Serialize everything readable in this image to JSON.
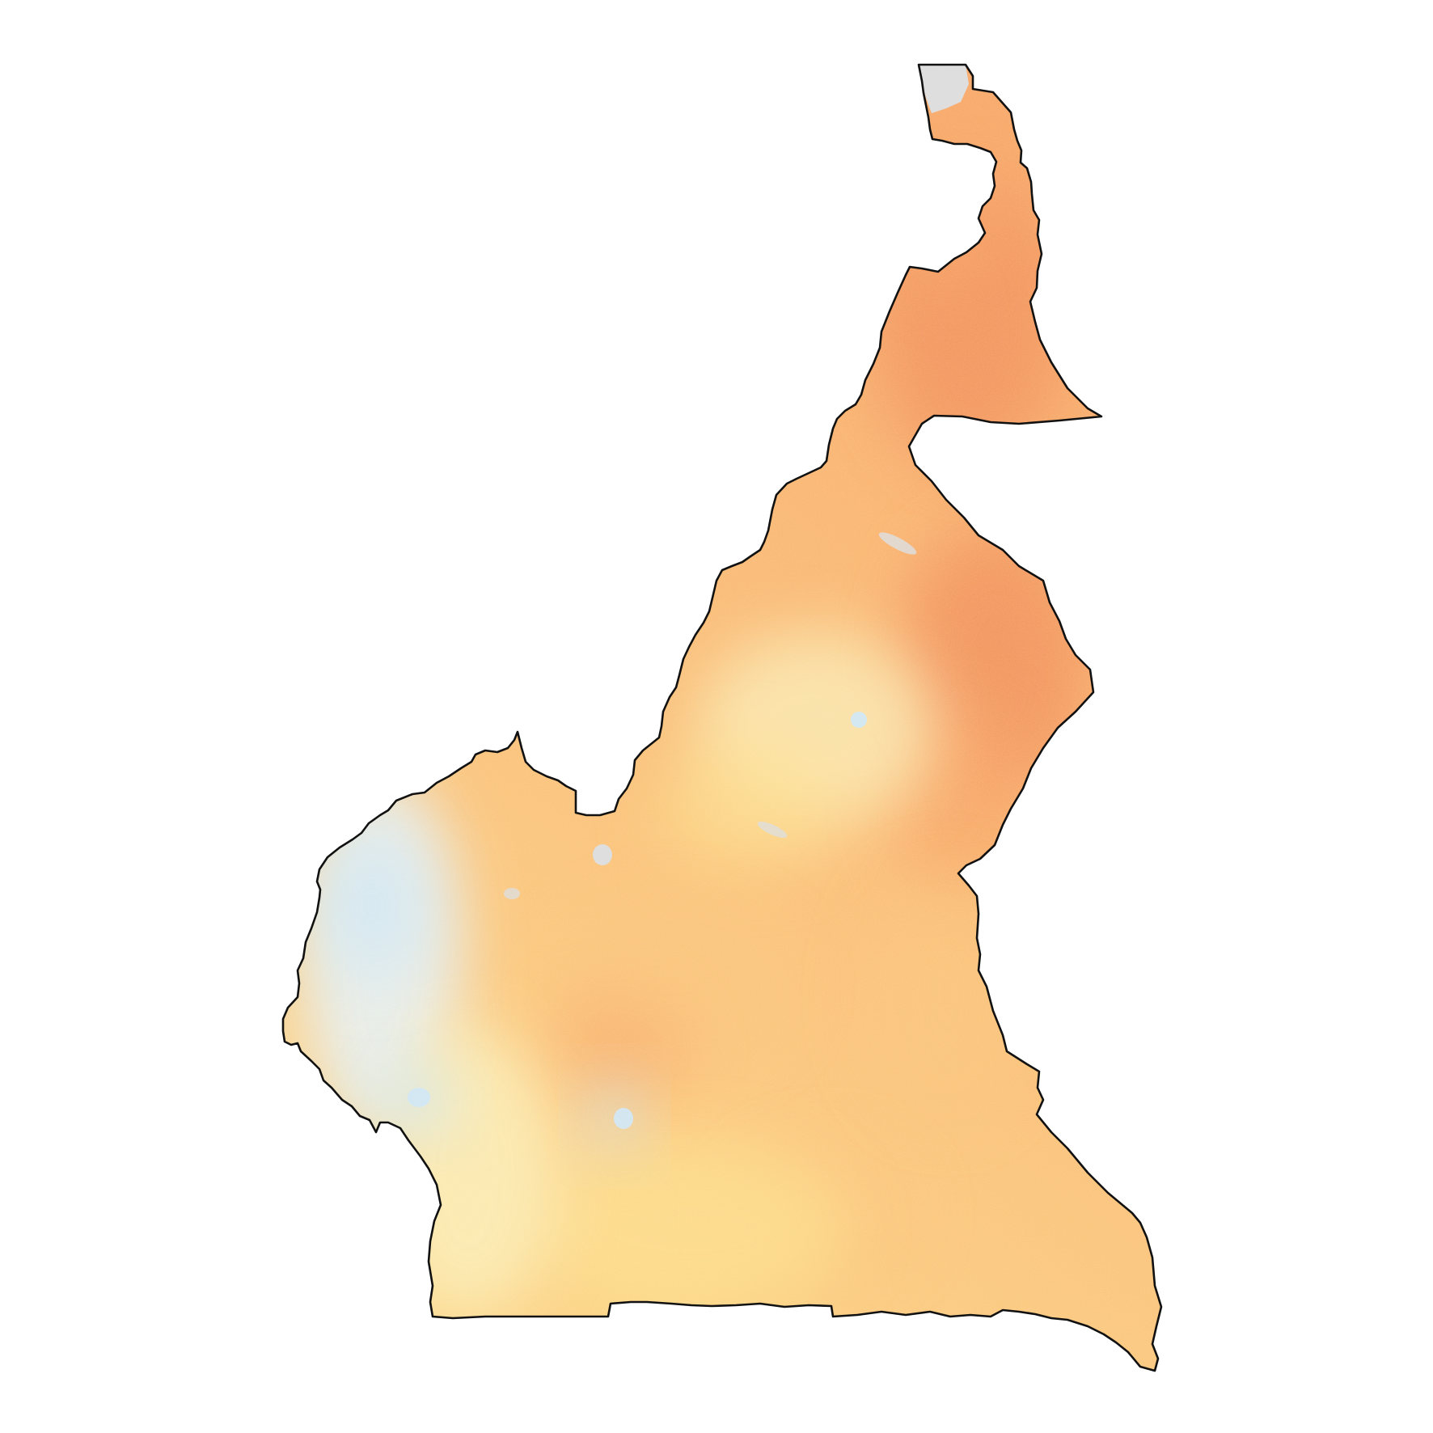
{
  "map": {
    "region_shape": "country outline",
    "outline_color": "#111111",
    "nodata_color": "#dcdcdc",
    "palette": {
      "blue": "#cfe6f3",
      "pale_blue": "#e6f1f4",
      "cream": "#fbeeb8",
      "yellow": "#fde08c",
      "light_orange": "#fbc47a",
      "orange": "#f8a565",
      "deep_orange": "#f18e58"
    },
    "legend": null
  }
}
